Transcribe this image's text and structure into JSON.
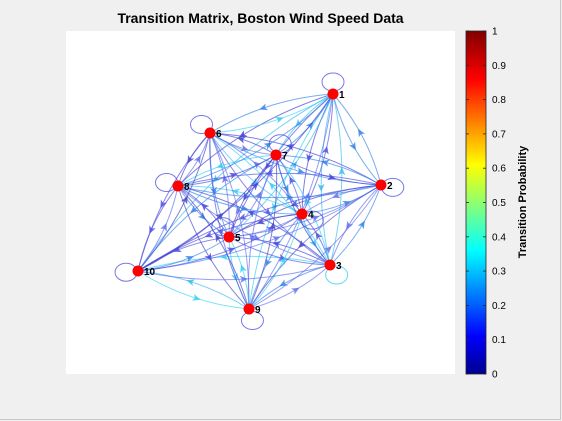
{
  "figure": {
    "title": "Transition Matrix, Boston Wind Speed Data"
  },
  "graph": {
    "nodes": [
      {
        "id": "1",
        "label": "1"
      },
      {
        "id": "2",
        "label": "2"
      },
      {
        "id": "3",
        "label": "3"
      },
      {
        "id": "4",
        "label": "4"
      },
      {
        "id": "5",
        "label": "5"
      },
      {
        "id": "6",
        "label": "6"
      },
      {
        "id": "7",
        "label": "7"
      },
      {
        "id": "8",
        "label": "8"
      },
      {
        "id": "9",
        "label": "9"
      },
      {
        "id": "10",
        "label": "10"
      }
    ],
    "node_color": "#ff0000",
    "edge_style": "directed edges between all node pairs, including self-loops, colored by transition probability"
  },
  "colorbar": {
    "label": "Transition Probability",
    "colormap": "jet",
    "ticks": [
      "0",
      "0.1",
      "0.2",
      "0.3",
      "0.4",
      "0.5",
      "0.6",
      "0.7",
      "0.8",
      "0.9",
      "1"
    ]
  }
}
